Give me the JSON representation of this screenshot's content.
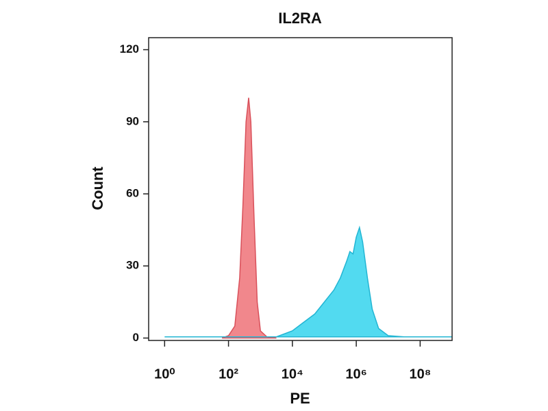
{
  "chart_data": {
    "type": "area",
    "title": "IL2RA",
    "x_label": "PE",
    "y_label": "Count",
    "xscale": "log",
    "xlim": [
      0.3162,
      1000000000
    ],
    "xticks": [
      {
        "value": 1,
        "label": "10⁰"
      },
      {
        "value": 100,
        "label": "10²"
      },
      {
        "value": 10000,
        "label": "10⁴"
      },
      {
        "value": 1000000,
        "label": "10⁶"
      },
      {
        "value": 100000000,
        "label": "10⁸"
      }
    ],
    "ylim": [
      -1,
      125
    ],
    "yticks": [
      0,
      30,
      60,
      90,
      120
    ],
    "series": [
      {
        "color": "#f07a80",
        "edge": "#d9505a",
        "x": [
          63,
          100,
          158,
          224,
          282,
          355,
          427,
          501,
          631,
          794,
          1000,
          1585,
          3162
        ],
        "values": [
          0,
          1,
          5,
          25,
          55,
          90,
          100,
          90,
          50,
          15,
          3,
          0.5,
          0
        ]
      },
      {
        "color": "#3fd6ee",
        "edge": "#22b5d3",
        "x": [
          1,
          100,
          3162,
          6310,
          10000,
          19953,
          50119,
          100000,
          199526,
          316228,
          501187,
          630957,
          794328,
          1000000,
          1258925,
          1584893,
          2238721,
          3162278,
          5011872,
          10000000,
          31622777,
          1000000000
        ],
        "values": [
          0.5,
          0.5,
          0.5,
          2,
          3,
          6,
          10,
          15,
          20,
          25,
          32,
          36,
          35,
          42,
          46,
          40,
          25,
          12,
          4,
          1,
          0.5,
          0.5
        ]
      }
    ]
  }
}
